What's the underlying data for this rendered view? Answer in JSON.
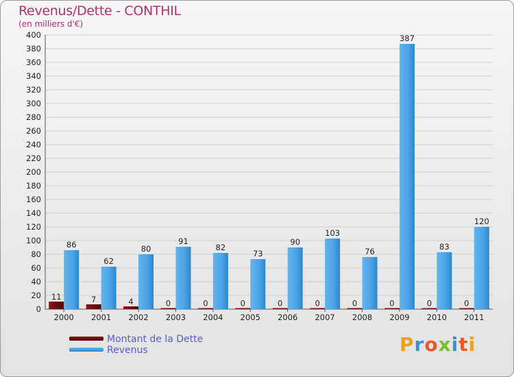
{
  "title": "Revenus/Dette - CONTHIL",
  "subtitle": "(en milliers d'€)",
  "brand": "Proxiti",
  "colors": {
    "dette": "#6e0a0a",
    "revenus": "#3f9be0",
    "title": "#b0316d",
    "legend_text": "#5b5bd6",
    "grid": "#cfcfcf"
  },
  "legend": {
    "dette_label": "Montant de la Dette",
    "revenus_label": "Revenus"
  },
  "chart_data": {
    "type": "bar",
    "title": "Revenus/Dette - CONTHIL",
    "subtitle": "(en milliers d'€)",
    "xlabel": "",
    "ylabel": "",
    "ylim": [
      0,
      400
    ],
    "ytick_step": 20,
    "grid": true,
    "legend_position": "bottom-left",
    "categories": [
      "2000",
      "2001",
      "2002",
      "2003",
      "2004",
      "2005",
      "2006",
      "2007",
      "2008",
      "2009",
      "2010",
      "2011"
    ],
    "series": [
      {
        "name": "Montant de la Dette",
        "values": [
          11,
          7,
          4,
          0,
          0,
          0,
          0,
          0,
          0,
          0,
          0,
          0
        ]
      },
      {
        "name": "Revenus",
        "values": [
          86,
          62,
          80,
          91,
          82,
          73,
          90,
          103,
          76,
          387,
          83,
          120
        ]
      }
    ]
  }
}
